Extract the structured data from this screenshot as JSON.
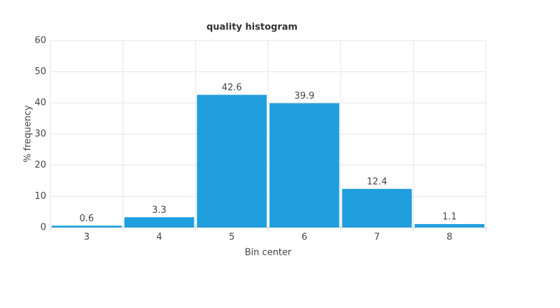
{
  "chart_data": {
    "type": "bar",
    "title": "quality histogram",
    "x_label": "Bin center",
    "y_label": "% frequency",
    "categories": [
      "3",
      "4",
      "5",
      "6",
      "7",
      "8"
    ],
    "values": [
      0.6,
      3.3,
      42.6,
      39.9,
      12.4,
      1.1
    ],
    "color": "#209fdf",
    "ylim": [
      0,
      60
    ],
    "yticks": [
      0,
      10,
      20,
      30,
      40,
      50,
      60
    ],
    "grid": true
  }
}
